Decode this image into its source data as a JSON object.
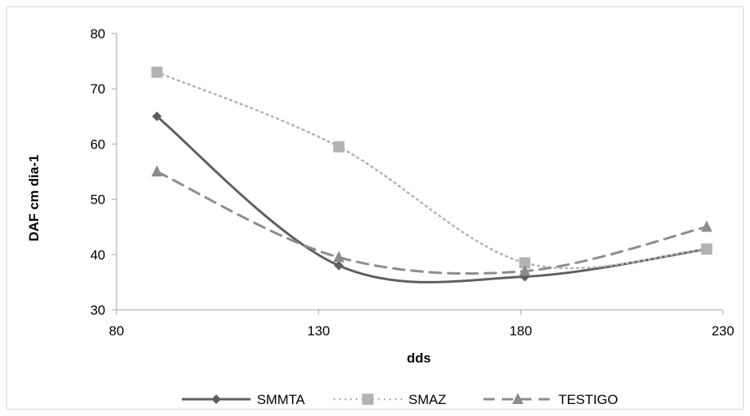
{
  "chart_data": {
    "type": "line",
    "title": "",
    "xlabel": "dds",
    "ylabel": "DAF cm dia-1",
    "xlim": [
      80,
      230
    ],
    "ylim": [
      30,
      80
    ],
    "x_ticks": [
      "80",
      "130",
      "180",
      "230"
    ],
    "y_ticks": [
      "30",
      "40",
      "50",
      "60",
      "70",
      "80"
    ],
    "x_tick_values": [
      80,
      130,
      180,
      230
    ],
    "y_tick_values": [
      30,
      40,
      50,
      60,
      70,
      80
    ],
    "grid": false,
    "legend_position": "bottom",
    "series": [
      {
        "name": "SMMTA",
        "x": [
          90,
          135,
          181,
          226
        ],
        "y": [
          65,
          38,
          36,
          41
        ],
        "color": "#5f5f5f",
        "dash": "solid",
        "marker": "diamond"
      },
      {
        "name": "SMAZ",
        "x": [
          90,
          135,
          181,
          226
        ],
        "y": [
          73,
          59.5,
          38.5,
          41
        ],
        "color": "#b3b3b3",
        "dash": "dotted",
        "marker": "square"
      },
      {
        "name": "TESTIGO",
        "x": [
          90,
          135,
          181,
          226
        ],
        "y": [
          55,
          39.5,
          37,
          45
        ],
        "color": "#8c8c8c",
        "dash": "dashed",
        "marker": "triangle"
      }
    ]
  }
}
